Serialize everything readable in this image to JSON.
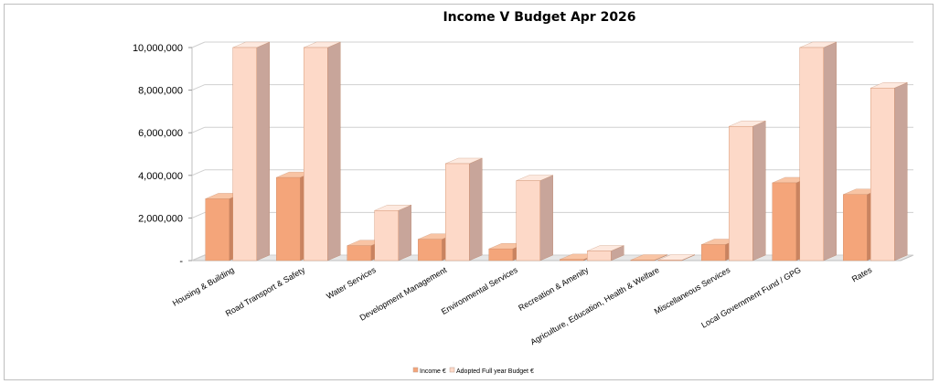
{
  "chart_data": {
    "type": "bar",
    "title": "Income V Budget Apr 2026",
    "ylim": [
      0,
      10000000
    ],
    "yticks": [
      "-",
      "2,000,000",
      "4,000,000",
      "6,000,000",
      "8,000,000",
      "10,000,000"
    ],
    "categories": [
      "Housing & Building",
      "Road Transport & Safety",
      "Water Services",
      "Development Management",
      "Environmental Services",
      "Recreation & Amenity",
      "Agriculture, Education, Health & Welfare",
      "Miscellaneous Services",
      "Local Government Fund / GPG",
      "Rates"
    ],
    "series": [
      {
        "name": "Income €",
        "values": [
          2900000,
          3900000,
          700000,
          1000000,
          550000,
          50000,
          20000,
          750000,
          3650000,
          3100000
        ]
      },
      {
        "name": "Adopted Full year Budget €",
        "values": [
          10000000,
          10000000,
          2350000,
          4550000,
          3750000,
          450000,
          20000,
          6300000,
          10000000,
          8100000
        ]
      }
    ],
    "grid": true,
    "legend": "bottom",
    "colors": {
      "income_front": "#f4a57a",
      "income_top": "#f8c4a4",
      "income_side": "#c98360",
      "budget_front": "#fdd9c8",
      "budget_top": "#fde9df",
      "budget_side": "#c8a59a"
    }
  }
}
